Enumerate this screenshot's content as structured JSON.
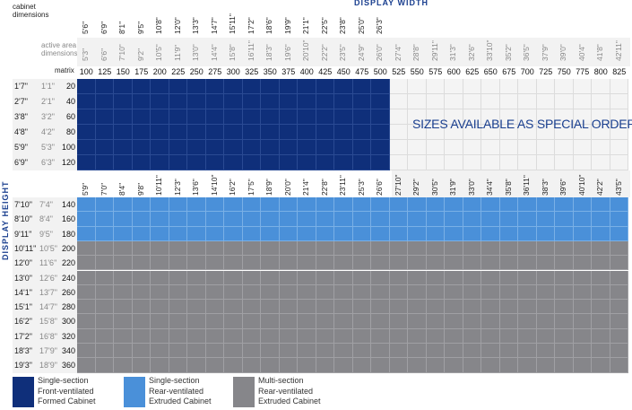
{
  "header": {
    "display_width_label": "DISPLAY WIDTH",
    "display_height_label": "DISPLAY HEIGHT",
    "cabinet_label": "cabinet dimensions",
    "active_label": "active area dimensions",
    "matrix_label": "matrix",
    "special_order": "SIZES AVAILABLE AS SPECIAL ORDER"
  },
  "columns": {
    "cabinet_top": [
      "5'6\"",
      "6'9\"",
      "8'1\"",
      "9'5\"",
      "10'8\"",
      "12'0\"",
      "13'3\"",
      "14'7\"",
      "15'11\"",
      "17'2\"",
      "18'6\"",
      "19'9\"",
      "21'1\"",
      "22'5\"",
      "23'8\"",
      "25'0\"",
      "26'3\""
    ],
    "active": [
      "5'3\"",
      "6'6\"",
      "7'10\"",
      "9'2\"",
      "10'5\"",
      "11'9\"",
      "13'0\"",
      "14'4\"",
      "15'8\"",
      "16'11\"",
      "18'3\"",
      "19'6\"",
      "20'10\"",
      "22'2\"",
      "23'5\"",
      "24'9\"",
      "26'0\"",
      "27'4\"",
      "28'8\"",
      "29'11\"",
      "31'3\"",
      "32'6\"",
      "33'10\"",
      "35'2\"",
      "36'5\"",
      "37'9\"",
      "39'0\"",
      "40'4\"",
      "41'8\"",
      "42'11\""
    ],
    "matrix": [
      "100",
      "125",
      "150",
      "175",
      "200",
      "225",
      "250",
      "275",
      "300",
      "325",
      "350",
      "375",
      "400",
      "425",
      "450",
      "475",
      "500",
      "525",
      "550",
      "575",
      "600",
      "625",
      "650",
      "675",
      "700",
      "725",
      "750",
      "775",
      "800",
      "825"
    ],
    "cabinet_mid": [
      "5'9\"",
      "7'0\"",
      "8'4\"",
      "9'8\"",
      "10'11\"",
      "12'3\"",
      "13'6\"",
      "14'10\"",
      "16'2\"",
      "17'5\"",
      "18'9\"",
      "20'0\"",
      "21'4\"",
      "22'8\"",
      "23'11\"",
      "25'3\"",
      "26'6\"",
      "27'10\"",
      "29'2\"",
      "30'5\"",
      "31'9\"",
      "33'0\"",
      "34'4\"",
      "35'8\"",
      "36'11\"",
      "38'3\"",
      "39'6\"",
      "40'10\"",
      "42'2\"",
      "43'5\""
    ]
  },
  "rows_top": [
    {
      "cabinet": "1'7\"",
      "active": "1'1\"",
      "matrix": "20"
    },
    {
      "cabinet": "2'7\"",
      "active": "2'1\"",
      "matrix": "40"
    },
    {
      "cabinet": "3'8\"",
      "active": "3'2\"",
      "matrix": "60"
    },
    {
      "cabinet": "4'8\"",
      "active": "4'2\"",
      "matrix": "80"
    },
    {
      "cabinet": "5'9\"",
      "active": "5'3\"",
      "matrix": "100"
    },
    {
      "cabinet": "6'9\"",
      "active": "6'3\"",
      "matrix": "120"
    }
  ],
  "rows_bottom": [
    {
      "cabinet": "7'10\"",
      "active": "7'4\"",
      "matrix": "140"
    },
    {
      "cabinet": "8'10\"",
      "active": "8'4\"",
      "matrix": "160"
    },
    {
      "cabinet": "9'11\"",
      "active": "9'5\"",
      "matrix": "180"
    },
    {
      "cabinet": "10'11\"",
      "active": "10'5\"",
      "matrix": "200"
    },
    {
      "cabinet": "12'0\"",
      "active": "11'6\"",
      "matrix": "220"
    },
    {
      "cabinet": "13'0\"",
      "active": "12'6\"",
      "matrix": "240"
    },
    {
      "cabinet": "14'1\"",
      "active": "13'7\"",
      "matrix": "260"
    },
    {
      "cabinet": "15'1\"",
      "active": "14'7\"",
      "matrix": "280"
    },
    {
      "cabinet": "16'2\"",
      "active": "15'8\"",
      "matrix": "300"
    },
    {
      "cabinet": "17'2\"",
      "active": "16'8\"",
      "matrix": "320"
    },
    {
      "cabinet": "18'3\"",
      "active": "17'9\"",
      "matrix": "340"
    },
    {
      "cabinet": "19'3\"",
      "active": "18'9\"",
      "matrix": "360"
    }
  ],
  "legend": [
    {
      "line1": "Single-section",
      "line2": "Front-ventilated",
      "line3": "Formed Cabinet",
      "color": "#0f2f7a"
    },
    {
      "line1": "Single-section",
      "line2": "Rear-ventilated",
      "line3": "Extruded Cabinet",
      "color": "#4a90d9"
    },
    {
      "line1": "Multi-section",
      "line2": "Rear-ventilated",
      "line3": "Extruded Cabinet",
      "color": "#86868a"
    }
  ],
  "colors": {
    "dark_blue": "#0f2f7a",
    "light_blue": "#4a90d9",
    "gray": "#86868a",
    "special_bg": "#f4f4f4",
    "header_blue": "#1a3f8f",
    "gridline": "#ffffff"
  }
}
